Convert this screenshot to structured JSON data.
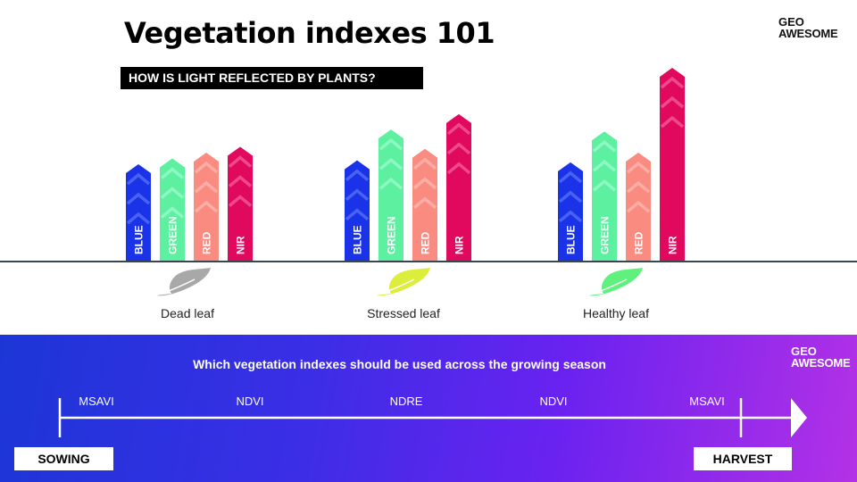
{
  "header": {
    "title": "Vegetation indexes 101",
    "subtitle": "HOW IS LIGHT REFLECTED BY PLANTS?"
  },
  "logo": {
    "line1": "GEO",
    "line2": "AWESOME"
  },
  "bands": [
    {
      "key": "blue",
      "label": "BLUE",
      "color": "#1a33e8",
      "arrow_color": "#4a62f2"
    },
    {
      "key": "green",
      "label": "GREEN",
      "color": "#5cf0a0",
      "arrow_color": "#8ef8c2"
    },
    {
      "key": "red",
      "label": "RED",
      "color": "#fa8b80",
      "arrow_color": "#fcaea6"
    },
    {
      "key": "nir",
      "label": "NIR",
      "color": "#e0095e",
      "arrow_color": "#ee4a8a"
    }
  ],
  "leaves": [
    {
      "label": "Dead leaf",
      "color": "#a8a8a8",
      "reflectance": {
        "blue": 0.5,
        "green": 0.53,
        "red": 0.56,
        "nir": 0.59
      }
    },
    {
      "label": "Stressed leaf",
      "color": "#dded3c",
      "reflectance": {
        "blue": 0.52,
        "green": 0.68,
        "red": 0.58,
        "nir": 0.76
      }
    },
    {
      "label": "Healthy leaf",
      "color": "#5ff07d",
      "reflectance": {
        "blue": 0.51,
        "green": 0.67,
        "red": 0.56,
        "nir": 1.0
      }
    }
  ],
  "season": {
    "title": "Which vegetation indexes should be used across the growing season",
    "indexes": [
      "MSAVI",
      "NDVI",
      "NDRE",
      "NDVI",
      "MSAVI"
    ],
    "start_label": "SOWING",
    "end_label": "HARVEST"
  }
}
